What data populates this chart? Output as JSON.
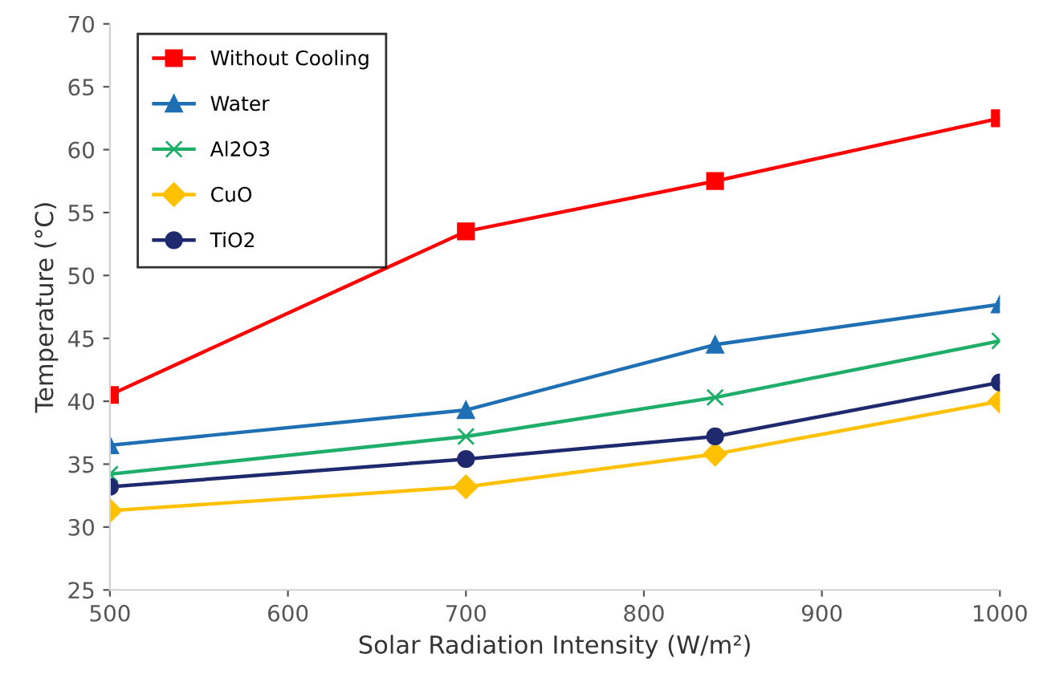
{
  "chart_data": {
    "type": "line",
    "xlabel": "Solar Radiation Intensity (W/m²)",
    "ylabel": "Temperature (°C)",
    "x": [
      500,
      700,
      840,
      1000
    ],
    "series": [
      {
        "name": "Without Cooling",
        "color": "#ff0000",
        "marker": "square",
        "values": [
          40.5,
          53.5,
          57.5,
          62.5
        ]
      },
      {
        "name": "Water",
        "color": "#1f6fb4",
        "marker": "triangle",
        "values": [
          36.5,
          39.3,
          44.5,
          47.7
        ]
      },
      {
        "name": "Al2O3",
        "color": "#1fae6a",
        "marker": "cross",
        "values": [
          34.2,
          37.2,
          40.3,
          44.8
        ]
      },
      {
        "name": "CuO",
        "color": "#ffc000",
        "marker": "diamond",
        "values": [
          31.3,
          33.2,
          35.8,
          40.0
        ]
      },
      {
        "name": "TiO2",
        "color": "#1f2a6e",
        "marker": "circle",
        "values": [
          33.2,
          35.4,
          37.2,
          41.5
        ]
      }
    ],
    "xlim": [
      500,
      1000
    ],
    "xticks": [
      500,
      600,
      700,
      800,
      900,
      1000
    ],
    "ylim": [
      25,
      70
    ],
    "yticks": [
      25,
      30,
      35,
      40,
      45,
      50,
      55,
      60,
      65,
      70
    ],
    "grid": false,
    "legend": "top left",
    "line_style": "solid"
  }
}
